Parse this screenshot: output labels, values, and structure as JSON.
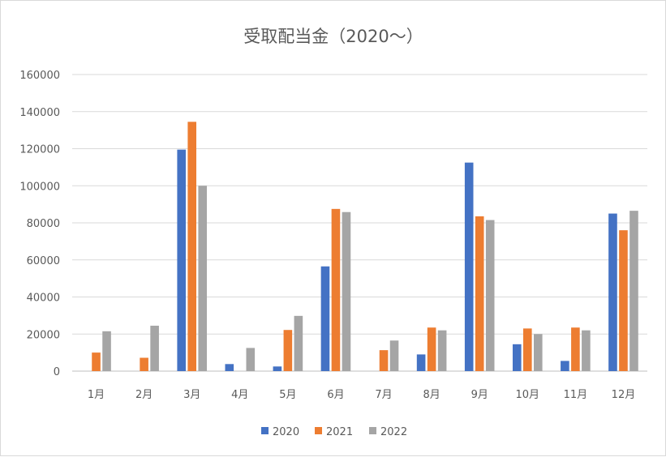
{
  "chart_data": {
    "type": "bar",
    "title": "受取配当金（2020～）",
    "xlabel": "",
    "ylabel": "",
    "categories": [
      "1月",
      "2月",
      "3月",
      "4月",
      "5月",
      "6月",
      "7月",
      "8月",
      "9月",
      "10月",
      "11月",
      "12月"
    ],
    "series": [
      {
        "name": "2020",
        "color": "#4472c4",
        "values": [
          0,
          0,
          119500,
          3800,
          2500,
          56500,
          0,
          9000,
          112500,
          14500,
          5500,
          85000
        ]
      },
      {
        "name": "2021",
        "color": "#ed7d31",
        "values": [
          10000,
          7200,
          134500,
          0,
          22200,
          87500,
          11300,
          23500,
          83500,
          23000,
          23500,
          76000
        ]
      },
      {
        "name": "2022",
        "color": "#a5a5a5",
        "values": [
          21500,
          24500,
          100000,
          12500,
          29800,
          85800,
          16500,
          22000,
          81500,
          20000,
          22000,
          86500
        ]
      }
    ],
    "ylim": [
      0,
      160000
    ],
    "yticks": [
      "0",
      "20000",
      "40000",
      "60000",
      "80000",
      "100000",
      "120000",
      "140000",
      "160000"
    ],
    "grid": true,
    "legend": "bottom"
  }
}
